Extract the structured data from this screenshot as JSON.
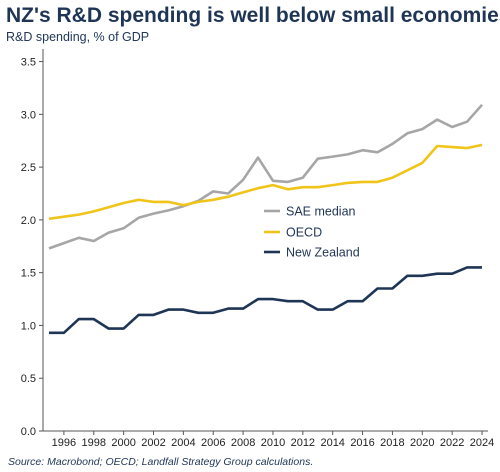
{
  "title": "NZ's R&D spending is well below small economies",
  "subtitle": "R&D spending, % of GDP",
  "source": "Source: Macrobond; OECD; Landfall Strategy Group calculations.",
  "chart_data": {
    "type": "line",
    "x": [
      1995,
      1996,
      1997,
      1998,
      1999,
      2000,
      2001,
      2002,
      2003,
      2004,
      2005,
      2006,
      2007,
      2008,
      2009,
      2010,
      2011,
      2012,
      2013,
      2014,
      2015,
      2016,
      2017,
      2018,
      2019,
      2020,
      2021,
      2022,
      2023,
      2024
    ],
    "xticks": [
      "1996",
      "1998",
      "2000",
      "2002",
      "2004",
      "2006",
      "2008",
      "2010",
      "2012",
      "2014",
      "2016",
      "2018",
      "2020",
      "2022",
      "2024"
    ],
    "yticks": [
      "0.0",
      "0.5",
      "1.0",
      "1.5",
      "2.0",
      "2.5",
      "3.0",
      "3.5"
    ],
    "ylim": [
      0,
      3.6
    ],
    "xlim": [
      1994.6,
      2024.4
    ],
    "grid": false,
    "legend_position": "center-right",
    "series": [
      {
        "name": "SAE median",
        "color": "#a6a6a6",
        "values": [
          1.73,
          1.78,
          1.83,
          1.8,
          1.88,
          1.92,
          2.02,
          2.06,
          2.09,
          2.13,
          2.18,
          2.27,
          2.25,
          2.38,
          2.59,
          2.37,
          2.36,
          2.4,
          2.58,
          2.6,
          2.62,
          2.66,
          2.64,
          2.72,
          2.82,
          2.86,
          2.95,
          2.88,
          2.93,
          3.09
        ]
      },
      {
        "name": "OECD",
        "color": "#f0c419",
        "values": [
          2.01,
          2.03,
          2.05,
          2.08,
          2.12,
          2.16,
          2.19,
          2.17,
          2.17,
          2.14,
          2.17,
          2.19,
          2.22,
          2.26,
          2.3,
          2.33,
          2.29,
          2.31,
          2.31,
          2.33,
          2.35,
          2.36,
          2.36,
          2.4,
          2.47,
          2.54,
          2.7,
          2.69,
          2.68,
          2.71
        ]
      },
      {
        "name": "New Zealand",
        "color": "#1f3556",
        "values": [
          0.93,
          0.93,
          1.06,
          1.06,
          0.97,
          0.97,
          1.1,
          1.1,
          1.15,
          1.15,
          1.12,
          1.12,
          1.16,
          1.16,
          1.25,
          1.25,
          1.23,
          1.23,
          1.15,
          1.15,
          1.23,
          1.23,
          1.35,
          1.35,
          1.47,
          1.47,
          1.49,
          1.49,
          1.55,
          1.55
        ]
      }
    ]
  }
}
